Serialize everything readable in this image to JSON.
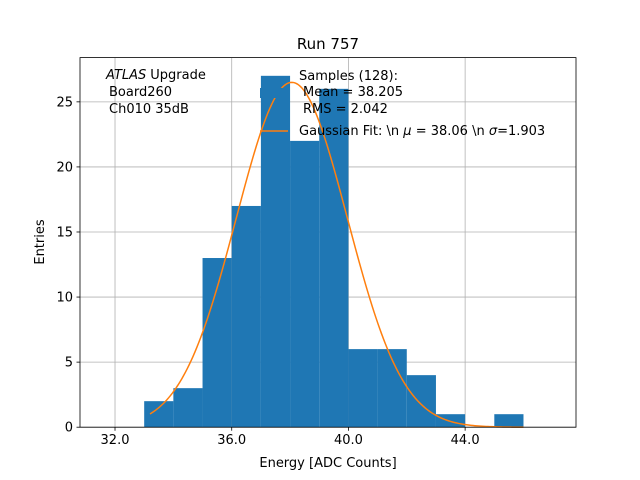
{
  "chart_data": {
    "type": "bar",
    "title": "Run 757",
    "xlabel": "Energy [ADC Counts]",
    "ylabel": "Entries",
    "xlim": [
      30.8,
      47.8
    ],
    "ylim": [
      0,
      28.4
    ],
    "x_ticks": [
      32,
      36,
      40,
      44
    ],
    "x_tick_labels": [
      "32.0",
      "36.0",
      "40.0",
      "44.0"
    ],
    "y_ticks": [
      0,
      5,
      10,
      15,
      20,
      25
    ],
    "y_tick_labels": [
      "0",
      "5",
      "10",
      "15",
      "20",
      "25"
    ],
    "grid": true,
    "histogram": {
      "name": "Samples (128):",
      "color": "#1f77b4",
      "bin_edges": [
        33,
        34,
        35,
        36,
        37,
        38,
        39,
        40,
        41,
        42,
        43,
        44,
        45,
        46
      ],
      "counts": [
        2,
        3,
        13,
        17,
        27,
        22,
        26,
        6,
        6,
        4,
        1,
        0,
        1
      ]
    },
    "fit": {
      "name": "Gaussian Fit: \\n $\\mu$ = 38.06 \\n $\\sigma$=1.903",
      "color": "#ff7f0e",
      "amplitude": 26.5,
      "mu": 38.06,
      "sigma": 1.903,
      "x_range": [
        33.2,
        46.0
      ]
    },
    "annotation": {
      "experiment": "ATLAS",
      "lines": [
        "Upgrade",
        "Board260",
        "Ch010 35dB"
      ]
    },
    "legend": {
      "position": "top-right",
      "sample_lines": [
        "Samples (128):",
        "Mean = 38.205",
        "RMS = 2.042"
      ],
      "fit_lines": [
        "Gaussian Fit: \\n ",
        "μ",
        " = 38.06 \\n ",
        "σ",
        "=1.903"
      ]
    }
  }
}
